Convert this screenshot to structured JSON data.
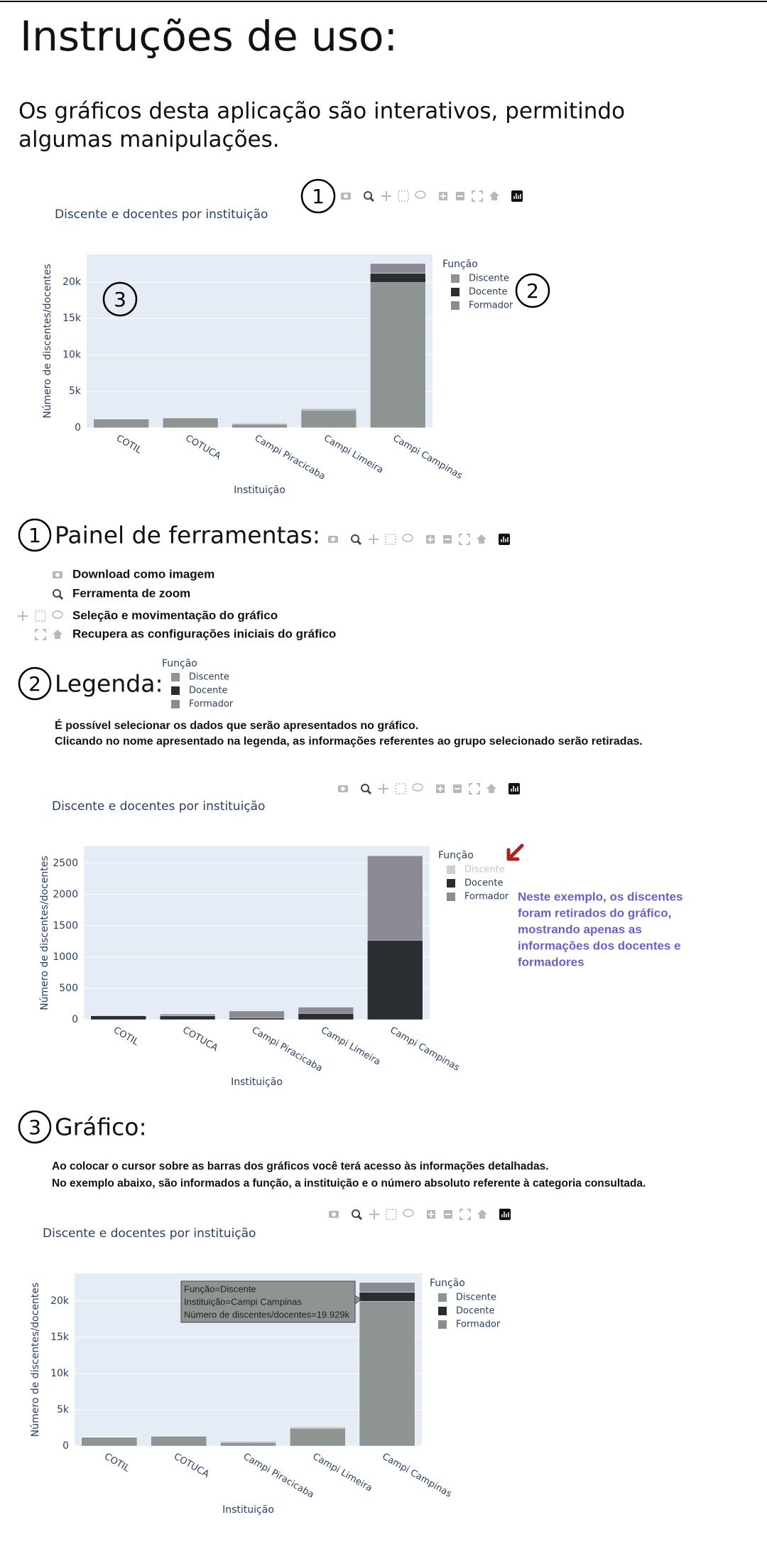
{
  "header": {
    "title": "Instruções de uso:",
    "intro": [
      "Os gráficos desta aplicação são interativos, permitindo",
      "algumas manipulações."
    ]
  },
  "chart_data": [
    {
      "type": "bar",
      "barmode": "stack",
      "title": "Discente e docentes por instituição",
      "x_label": "Instituição",
      "y_label": "Número de discentes/docentes",
      "legend_title": "Função",
      "categories": [
        "COTIL",
        "COTUCA",
        "Campi Piracicaba",
        "Campi Limeira",
        "Campi Campinas"
      ],
      "series": [
        {
          "name": "Discente",
          "color": "#8e9491",
          "values": [
            1200,
            1350,
            500,
            2400,
            19929
          ]
        },
        {
          "name": "Docente",
          "color": "#2a2d31",
          "values": [
            60,
            60,
            30,
            100,
            1270
          ]
        },
        {
          "name": "Formador",
          "color": "#8c8b95",
          "values": [
            10,
            30,
            110,
            100,
            1350
          ]
        }
      ],
      "ylim": [
        0,
        23800
      ],
      "yticks": [
        0,
        {
          "value": 5000,
          "label": "5k"
        },
        {
          "value": 10000,
          "label": "10k"
        },
        {
          "value": 15000,
          "label": "15k"
        },
        {
          "value": 20000,
          "label": "20k"
        }
      ],
      "grid": true,
      "callouts": [
        "1",
        "2",
        "3"
      ]
    },
    {
      "type": "bar",
      "barmode": "stack",
      "title": "Discente e docentes por instituição",
      "x_label": "Instituição",
      "y_label": "Número de discentes/docentes",
      "legend_title": "Função",
      "categories": [
        "COTIL",
        "COTUCA",
        "Campi Piracicaba",
        "Campi Limeira",
        "Campi Campinas"
      ],
      "series": [
        {
          "name": "Discente",
          "color": "#cfcfcf",
          "visible": false
        },
        {
          "name": "Docente",
          "color": "#2a2d31",
          "values": [
            60,
            60,
            30,
            100,
            1270
          ]
        },
        {
          "name": "Formador",
          "color": "#8c8b95",
          "values": [
            10,
            30,
            110,
            100,
            1350
          ]
        }
      ],
      "ylim": [
        0,
        2770
      ],
      "yticks": [
        0,
        500,
        1000,
        1500,
        2000,
        2500
      ],
      "grid": true,
      "note": [
        "Neste exemplo, os discentes",
        "foram retirados do gráfico,",
        "mostrando apenas as",
        "informações dos docentes e",
        "formadores"
      ]
    },
    {
      "type": "bar",
      "barmode": "stack",
      "title": "Discente e docentes por instituição",
      "x_label": "Instituição",
      "y_label": "Número de discentes/docentes",
      "legend_title": "Função",
      "categories": [
        "COTIL",
        "COTUCA",
        "Campi Piracicaba",
        "Campi Limeira",
        "Campi Campinas"
      ],
      "series": [
        {
          "name": "Discente",
          "color": "#8e9491",
          "values": [
            1200,
            1350,
            500,
            2400,
            19929
          ]
        },
        {
          "name": "Docente",
          "color": "#2a2d31",
          "values": [
            60,
            60,
            30,
            100,
            1270
          ]
        },
        {
          "name": "Formador",
          "color": "#8c8b95",
          "values": [
            10,
            30,
            110,
            100,
            1350
          ]
        }
      ],
      "ylim": [
        0,
        23800
      ],
      "yticks": [
        0,
        {
          "value": 5000,
          "label": "5k"
        },
        {
          "value": 10000,
          "label": "10k"
        },
        {
          "value": 15000,
          "label": "15k"
        },
        {
          "value": 20000,
          "label": "20k"
        }
      ],
      "grid": true,
      "hover": [
        "Função=Discente",
        "Instituição=Campi Campinas",
        "Número de discentes/docentes=19.929k"
      ]
    }
  ],
  "sections": [
    {
      "number": "1",
      "title": "Painel de ferramentas:",
      "items": [
        "Download como imagem",
        "Ferramenta de zoom",
        "Seleção e movimentação do gráfico",
        "Recupera as configurações iniciais do gráfico"
      ]
    },
    {
      "number": "2",
      "title": "Legenda:",
      "legend": {
        "title": "Função",
        "items": [
          "Discente",
          "Docente",
          "Formador"
        ],
        "colors": [
          "#8e9491",
          "#2a2d31",
          "#8c8b95"
        ]
      },
      "lines": [
        "É possível selecionar os dados que serão apresentados no gráfico.",
        "Clicando no nome apresentado na legenda, as informações referentes ao grupo selecionado serão retiradas."
      ]
    },
    {
      "number": "3",
      "title": "Gráfico:",
      "lines": [
        "Ao colocar o cursor sobre as barras dos gráficos você terá acesso às informações detalhadas.",
        "No exemplo abaixo, são informados a função, a instituição e o número absoluto referente à categoria consultada."
      ]
    }
  ]
}
